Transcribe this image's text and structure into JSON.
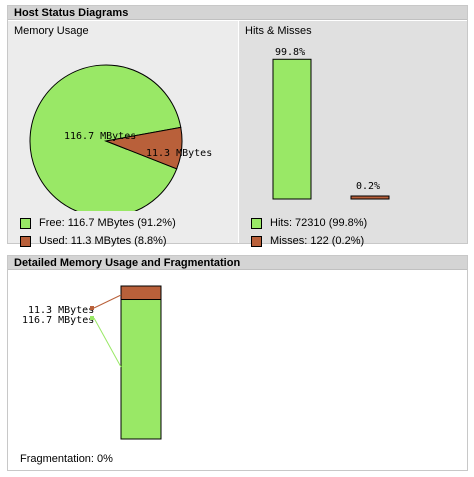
{
  "host_status": {
    "title": "Host Status Diagrams",
    "memory": {
      "label": "Memory Usage",
      "free_label": "116.7 MBytes",
      "used_label": "11.3 MBytes",
      "legend_free": "Free: 116.7 MBytes (91.2%)",
      "legend_used": "Used: 11.3 MBytes (8.8%)"
    },
    "hits": {
      "label": "Hits & Misses",
      "hits_pct_label": "99.8%",
      "misses_pct_label": "0.2%",
      "legend_hits": "Hits: 72310 (99.8%)",
      "legend_misses": "Misses: 122 (0.2%)"
    }
  },
  "detailed": {
    "title": "Detailed Memory Usage and Fragmentation",
    "used_label": "11.3 MBytes",
    "free_label": "116.7 MBytes",
    "fragmentation": "Fragmentation: 0%"
  },
  "colors": {
    "free": "#99e866",
    "used": "#b9603a",
    "header_bg": "#d4d4d4",
    "panel_bg": "#e8e8e8"
  },
  "chart_data": [
    {
      "type": "pie",
      "categories": [
        "Free",
        "Used"
      ],
      "values": [
        116.7,
        11.3
      ],
      "percent": [
        91.2,
        8.8
      ],
      "unit": "MBytes"
    },
    {
      "type": "bar",
      "categories": [
        "Hits",
        "Misses"
      ],
      "values": [
        72310,
        122
      ],
      "percent": [
        99.8,
        0.2
      ]
    },
    {
      "type": "bar",
      "categories": [
        "Used",
        "Free"
      ],
      "values": [
        11.3,
        116.7
      ],
      "unit": "MBytes",
      "stacked": true
    }
  ]
}
